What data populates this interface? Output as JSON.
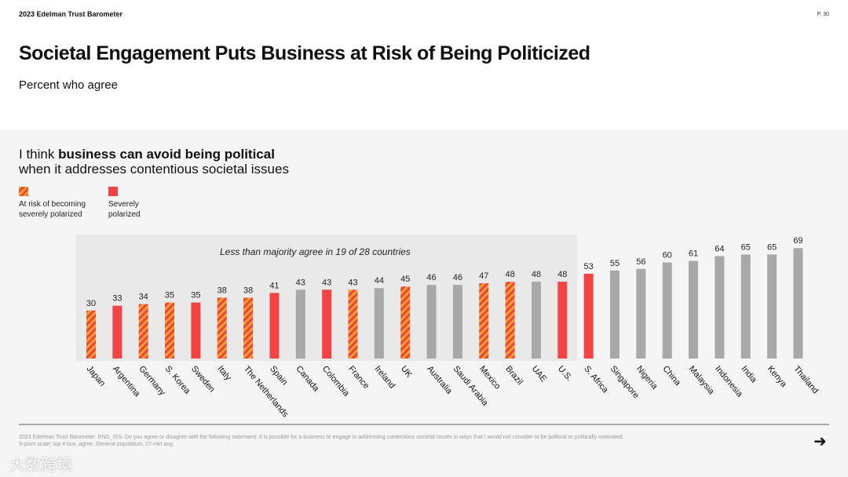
{
  "header": {
    "brand": "2023 Edelman Trust Barometer",
    "page": "P. 30",
    "title": "Societal Engagement Puts Business at Risk of Being Politicized",
    "subtitle": "Percent who agree"
  },
  "question": {
    "prefix": "I think ",
    "bold": "business can avoid being political",
    "line2": "when it addresses contentious societal issues"
  },
  "legend": [
    {
      "label1": "At risk of becoming",
      "label2": "severely polarized",
      "type": "stripe"
    },
    {
      "label1": "Severely",
      "label2": "polarized",
      "type": "red"
    }
  ],
  "colors": {
    "red": "#f24444",
    "orange": "#f3a32b",
    "gray": "#a8a8a8"
  },
  "chart_data": {
    "type": "bar",
    "annotation": "Less than majority agree in 19 of 28 countries",
    "ylim": [
      0,
      100
    ],
    "categories": [
      "Japan",
      "Argentina",
      "Germany",
      "S. Korea",
      "Sweden",
      "Italy",
      "The Netherlands",
      "Spain",
      "Canada",
      "Colombia",
      "France",
      "Ireland",
      "UK",
      "Australia",
      "Saudi Arabia",
      "Mexico",
      "Brazil",
      "UAE",
      "U.S.",
      "S. Africa",
      "Singapore",
      "Nigeria",
      "China",
      "Malaysia",
      "Indonesia",
      "India",
      "Kenya",
      "Thailand"
    ],
    "values": [
      30,
      33,
      34,
      35,
      35,
      38,
      38,
      41,
      43,
      43,
      43,
      44,
      45,
      46,
      46,
      47,
      48,
      48,
      48,
      53,
      55,
      56,
      60,
      61,
      64,
      65,
      65,
      69
    ],
    "status": [
      "stripe",
      "red",
      "stripe",
      "stripe",
      "red",
      "stripe",
      "stripe",
      "red",
      "gray",
      "red",
      "stripe",
      "gray",
      "stripe",
      "gray",
      "gray",
      "stripe",
      "stripe",
      "gray",
      "red",
      "red",
      "gray",
      "gray",
      "gray",
      "gray",
      "gray",
      "gray",
      "gray",
      "gray"
    ]
  },
  "footer": {
    "line1": "2023 Edelman Trust Barometer. ENG_ISS. Do you agree or disagree with the following statement: It is possible for a business to engage in addressing contentious societal issues in ways that I would not consider to be political or politically motivated.",
    "line2": "9-point scale; top 4 box, agree. General population, 27-mkt avg."
  },
  "watermark": "大数跨境"
}
